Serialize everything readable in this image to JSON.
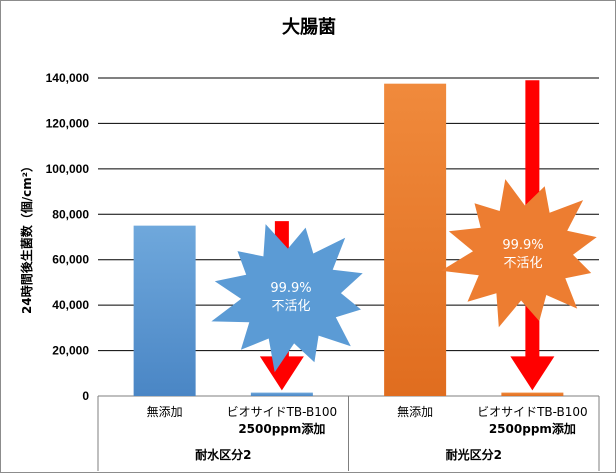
{
  "chart_data": {
    "type": "bar",
    "title": "大腸菌",
    "ylabel": "24時間後生菌数（個/cm²）",
    "ylim": [
      0,
      140000
    ],
    "yticks": [
      "0",
      "20,000",
      "40,000",
      "60,000",
      "80,000",
      "100,000",
      "120,000",
      "140,000"
    ],
    "grid": true,
    "groups": [
      {
        "label": "耐水区分2",
        "color": "#5b9bd5",
        "bars": [
          {
            "label": [
              "無添加"
            ],
            "value": 75000
          },
          {
            "label": [
              "ビオサイドTB-B100",
              "2500ppm添加"
            ],
            "value": 1500
          }
        ]
      },
      {
        "label": "耐光区分2",
        "color": "#ed7d31",
        "bars": [
          {
            "label": [
              "無添加"
            ],
            "value": 137500
          },
          {
            "label": [
              "ビオサイドTB-B100",
              "2500ppm添加"
            ],
            "value": 1500
          }
        ]
      }
    ],
    "annotations": [
      {
        "text": [
          "99.9%",
          "不活化"
        ],
        "group": 0,
        "from": 77000,
        "to": 2500,
        "burst_color": "#5b9bd5"
      },
      {
        "text": [
          "99.9%",
          "不活化"
        ],
        "group": 1,
        "from": 139000,
        "to": 2500,
        "burst_color": "#ed7d31"
      }
    ],
    "arrow_color": "#ff0000"
  }
}
